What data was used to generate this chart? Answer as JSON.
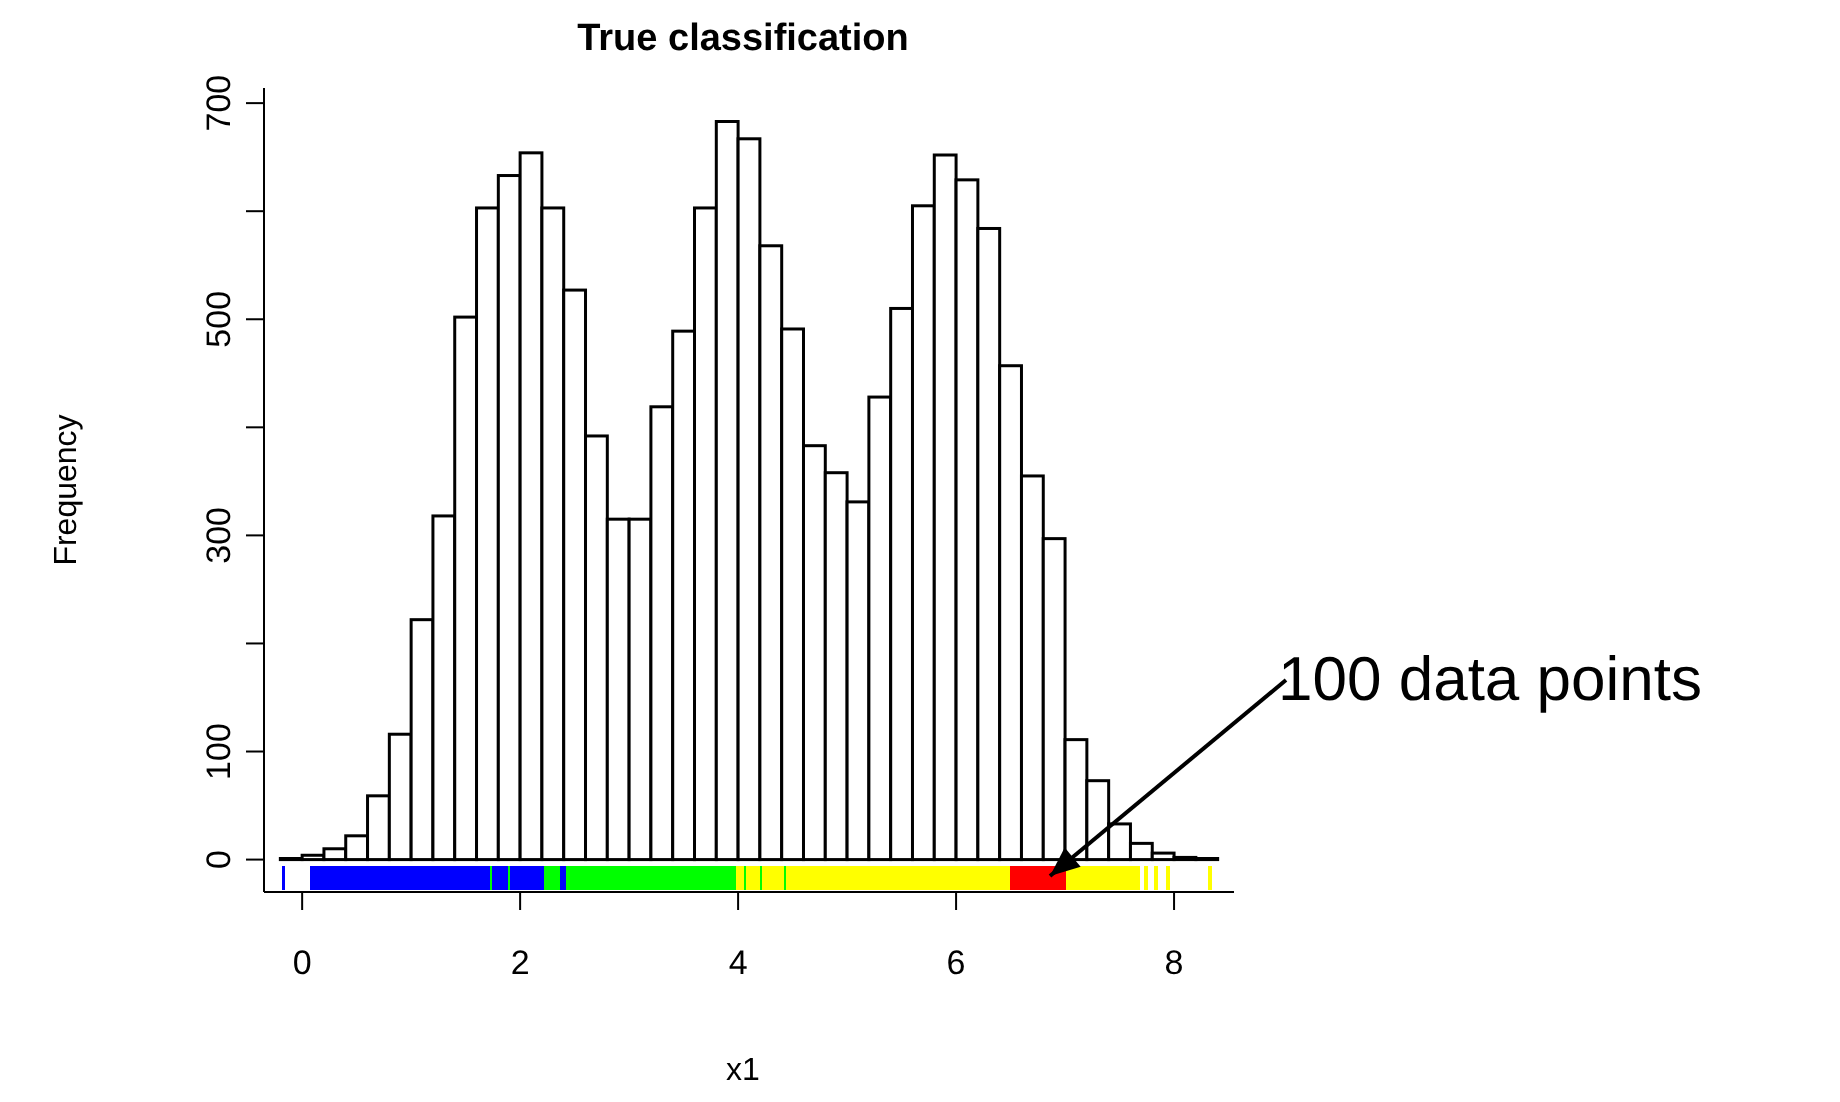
{
  "chart_data": {
    "type": "histogram",
    "title": "True classification",
    "xlabel": "x1",
    "ylabel": "Frequency",
    "bins": [
      -0.2,
      0,
      0.2,
      0.4,
      0.6,
      0.8,
      1,
      1.2,
      1.4,
      1.6,
      1.8,
      2,
      2.2,
      2.4,
      2.6,
      2.8,
      3,
      3.2,
      3.4,
      3.6,
      3.8,
      4,
      4.2,
      4.4,
      4.6,
      4.8,
      5,
      5.2,
      5.4,
      5.6,
      5.8,
      6,
      6.2,
      6.4,
      6.6,
      6.8,
      7,
      7.2,
      7.4,
      7.6,
      7.8,
      8,
      8.2,
      8.4
    ],
    "values": [
      1,
      4,
      10,
      22,
      59,
      116,
      222,
      318,
      502,
      603,
      633,
      654,
      603,
      527,
      392,
      315,
      315,
      419,
      489,
      603,
      683,
      667,
      568,
      491,
      383,
      358,
      331,
      428,
      510,
      605,
      652,
      629,
      584,
      457,
      355,
      297,
      111,
      73,
      33,
      15,
      6,
      2,
      1
    ],
    "color": "#ffffff",
    "xlim": [
      -0.35,
      8.55
    ],
    "xticks": [
      0,
      2,
      4,
      6,
      8
    ],
    "ylim": [
      -30,
      714
    ],
    "yticks": [
      0,
      100,
      {
        "value": 200,
        "label": null
      },
      300,
      {
        "value": 400,
        "label": null
      },
      500,
      {
        "value": 600,
        "label": null
      },
      700
    ],
    "annotations": [
      "100 data points"
    ]
  }
}
